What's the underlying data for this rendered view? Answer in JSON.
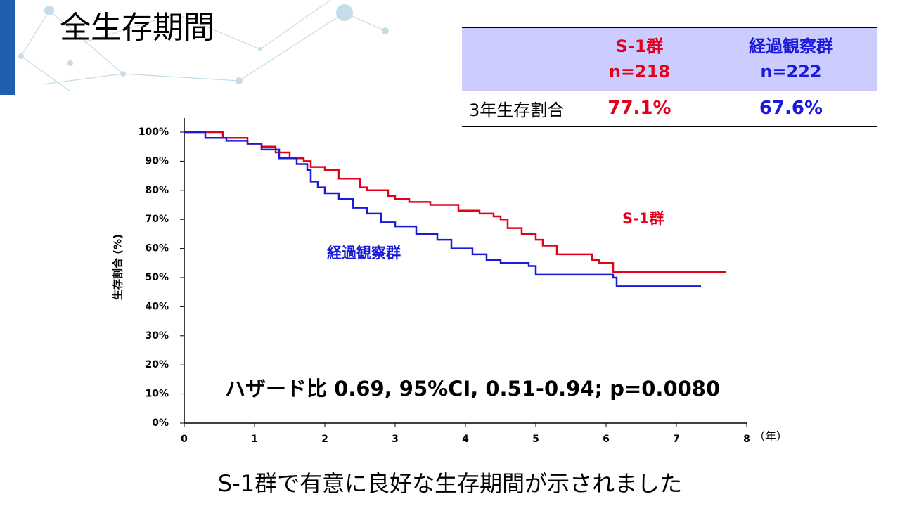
{
  "title": "全生存期間",
  "conclusion": "S-1群で有意に良好な生存期間が示されました",
  "table": {
    "columns": [
      {
        "name": "S-1群",
        "n": "n=218"
      },
      {
        "name": "経過観察群",
        "n": "n=222"
      }
    ],
    "rows": [
      [
        "3年生存割合",
        "77.1%",
        "67.6%"
      ]
    ]
  },
  "chart_data": {
    "type": "step",
    "y_label": "生存割合 (%)",
    "x_label": "（年）",
    "annotation": "ハザード比 0.69, 95%CI, 0.51-0.94; p=0.0080",
    "xlim": [
      0,
      8
    ],
    "xticks": [
      0,
      1,
      2,
      3,
      4,
      5,
      6,
      7,
      8
    ],
    "ylim": [
      0,
      100
    ],
    "yticks": [
      {
        "value": 0,
        "label": "0%"
      },
      {
        "value": 10,
        "label": "10%"
      },
      {
        "value": 20,
        "label": "20%"
      },
      {
        "value": 30,
        "label": "30%"
      },
      {
        "value": 40,
        "label": "40%"
      },
      {
        "value": 50,
        "label": "50%"
      },
      {
        "value": 60,
        "label": "60%"
      },
      {
        "value": 70,
        "label": "70%"
      },
      {
        "value": 80,
        "label": "80%"
      },
      {
        "value": 90,
        "label": "90%"
      },
      {
        "value": 100,
        "label": "100%"
      }
    ],
    "series": [
      {
        "name": "S-1群",
        "color": "#e3001b",
        "x": [
          0,
          0.3,
          0.55,
          0.9,
          1.1,
          1.3,
          1.5,
          1.7,
          1.8,
          2.0,
          2.2,
          2.5,
          2.6,
          2.9,
          3.0,
          3.2,
          3.5,
          3.9,
          4.2,
          4.4,
          4.5,
          4.6,
          4.8,
          5.0,
          5.1,
          5.3,
          5.8,
          5.9,
          6.1,
          7.7
        ],
        "values": [
          100,
          100,
          98,
          96,
          95,
          93,
          91,
          90,
          88,
          87,
          84,
          81,
          80,
          78,
          77,
          76,
          75,
          73,
          72,
          71,
          70,
          67,
          65,
          63,
          61,
          58,
          56,
          55,
          52,
          52
        ]
      },
      {
        "name": "経過観察群",
        "color": "#1a1adb",
        "x": [
          0,
          0.3,
          0.6,
          0.9,
          1.1,
          1.35,
          1.6,
          1.75,
          1.8,
          1.9,
          2.0,
          2.2,
          2.4,
          2.6,
          2.8,
          3.0,
          3.3,
          3.6,
          3.8,
          4.1,
          4.3,
          4.5,
          4.9,
          5.0,
          6.1,
          6.15,
          7.35
        ],
        "values": [
          100,
          98,
          97,
          96,
          94,
          91,
          89,
          87,
          83,
          81,
          79,
          77,
          74,
          72,
          69,
          67.6,
          65,
          63,
          60,
          58,
          56,
          55,
          54,
          51,
          50,
          47,
          47
        ]
      }
    ]
  }
}
